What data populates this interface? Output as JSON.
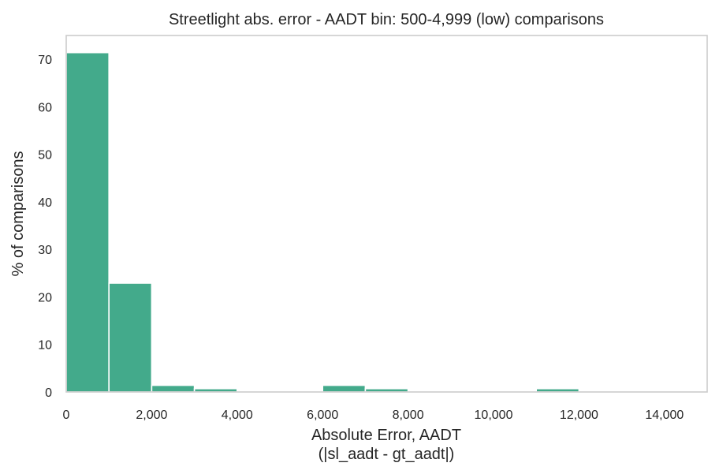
{
  "chart_data": {
    "type": "bar",
    "title": "Streetlight abs. error - AADT bin: 500-4,999 (low) comparisons",
    "xlabel_line1": "Absolute Error, AADT",
    "xlabel_line2": "(|sl_aadt - gt_aadt|)",
    "ylabel": "% of comparisons",
    "xlim": [
      0,
      15000
    ],
    "ylim": [
      0,
      75
    ],
    "grid": false,
    "bar_color": "#43aa8b",
    "x_ticks": [
      {
        "value": 0,
        "label": "0"
      },
      {
        "value": 2000,
        "label": "2,000"
      },
      {
        "value": 4000,
        "label": "4,000"
      },
      {
        "value": 6000,
        "label": "6,000"
      },
      {
        "value": 8000,
        "label": "8,000"
      },
      {
        "value": 10000,
        "label": "10,000"
      },
      {
        "value": 12000,
        "label": "12,000"
      },
      {
        "value": 14000,
        "label": "14,000"
      }
    ],
    "y_ticks": [
      {
        "value": 0,
        "label": "0"
      },
      {
        "value": 10,
        "label": "10"
      },
      {
        "value": 20,
        "label": "20"
      },
      {
        "value": 30,
        "label": "30"
      },
      {
        "value": 40,
        "label": "40"
      },
      {
        "value": 50,
        "label": "50"
      },
      {
        "value": 60,
        "label": "60"
      },
      {
        "value": 70,
        "label": "70"
      }
    ],
    "bins": [
      {
        "x0": 0,
        "x1": 1000,
        "value": 71.4
      },
      {
        "x0": 1000,
        "x1": 2000,
        "value": 22.9
      },
      {
        "x0": 2000,
        "x1": 3000,
        "value": 1.4
      },
      {
        "x0": 3000,
        "x1": 4000,
        "value": 0.7
      },
      {
        "x0": 4000,
        "x1": 5000,
        "value": 0
      },
      {
        "x0": 5000,
        "x1": 6000,
        "value": 0
      },
      {
        "x0": 6000,
        "x1": 7000,
        "value": 1.4
      },
      {
        "x0": 7000,
        "x1": 8000,
        "value": 0.7
      },
      {
        "x0": 8000,
        "x1": 9000,
        "value": 0
      },
      {
        "x0": 9000,
        "x1": 10000,
        "value": 0
      },
      {
        "x0": 10000,
        "x1": 11000,
        "value": 0
      },
      {
        "x0": 11000,
        "x1": 12000,
        "value": 0.7
      },
      {
        "x0": 12000,
        "x1": 13000,
        "value": 0
      },
      {
        "x0": 13000,
        "x1": 14000,
        "value": 0
      },
      {
        "x0": 14000,
        "x1": 15000,
        "value": 0
      }
    ]
  }
}
